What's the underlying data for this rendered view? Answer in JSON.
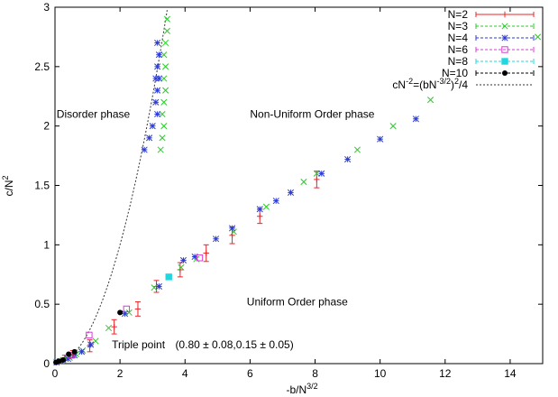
{
  "chart_data": {
    "type": "scatter",
    "xlabel": "-b/N^{3/2}",
    "ylabel": "c/N^2",
    "xlim": [
      0,
      15
    ],
    "ylim": [
      0,
      3
    ],
    "xticks": [
      0,
      2,
      4,
      6,
      8,
      10,
      12,
      14
    ],
    "yticks": [
      0,
      0.5,
      1,
      1.5,
      2,
      2.5,
      3
    ],
    "annotations": [
      {
        "text": "Disorder phase",
        "x": 0.05,
        "y": 2.07
      },
      {
        "text": "Non-Uniform Order phase",
        "x": 6.0,
        "y": 2.07
      },
      {
        "text": "Uniform Order phase",
        "x": 5.9,
        "y": 0.49
      },
      {
        "text": "Triple point",
        "x": 1.75,
        "y": 0.13
      },
      {
        "text": "(0.80 ± 0.08,0.15 ± 0.05)",
        "x": 3.7,
        "y": 0.13
      }
    ],
    "legend": {
      "position": "top-right"
    },
    "series": [
      {
        "name": "N=2",
        "color": "#e8262a",
        "marker": "plus",
        "points": [
          [
            0.07,
            0.02,
            0,
            0.01
          ],
          [
            0.3,
            0.05,
            0,
            0.02
          ],
          [
            0.55,
            0.08,
            0,
            0.03
          ],
          [
            1.07,
            0.15,
            0,
            0.05
          ],
          [
            1.82,
            0.31,
            0,
            0.06
          ],
          [
            2.55,
            0.46,
            0,
            0.06
          ],
          [
            3.12,
            0.65,
            0,
            0.05
          ],
          [
            3.85,
            0.79,
            0,
            0.06
          ],
          [
            4.65,
            0.93,
            0,
            0.07
          ],
          [
            5.45,
            1.08,
            0,
            0.07
          ],
          [
            6.3,
            1.24,
            0,
            0.06
          ],
          [
            8.05,
            1.55,
            0,
            0.07
          ]
        ]
      },
      {
        "name": "N=3",
        "color": "#2ac92a",
        "marker": "cross",
        "points": [
          [
            0.06,
            0.02
          ],
          [
            0.25,
            0.03
          ],
          [
            0.45,
            0.05
          ],
          [
            0.65,
            0.08
          ],
          [
            0.85,
            0.11
          ],
          [
            1.25,
            0.19
          ],
          [
            1.65,
            0.3
          ],
          [
            2.28,
            0.43
          ],
          [
            3.05,
            0.64
          ],
          [
            3.88,
            0.81
          ],
          [
            4.35,
            0.88
          ],
          [
            5.5,
            1.11
          ],
          [
            6.5,
            1.32
          ],
          [
            7.65,
            1.53
          ],
          [
            8.05,
            1.6
          ],
          [
            9.3,
            1.8
          ],
          [
            10.4,
            2.0
          ],
          [
            11.55,
            2.22
          ],
          [
            14.85,
            2.75
          ],
          [
            3.25,
            1.8
          ],
          [
            3.3,
            1.9
          ],
          [
            3.35,
            2.0
          ],
          [
            3.3,
            2.1
          ],
          [
            3.35,
            2.2
          ],
          [
            3.4,
            2.3
          ],
          [
            3.35,
            2.4
          ],
          [
            3.4,
            2.5
          ],
          [
            3.35,
            2.6
          ],
          [
            3.4,
            2.7
          ],
          [
            3.45,
            2.8
          ],
          [
            3.45,
            2.9
          ]
        ]
      },
      {
        "name": "N=4",
        "color": "#2b3bd6",
        "marker": "star",
        "points": [
          [
            0.05,
            0.01
          ],
          [
            0.18,
            0.02
          ],
          [
            0.4,
            0.04
          ],
          [
            0.6,
            0.07
          ],
          [
            0.82,
            0.1
          ],
          [
            1.1,
            0.16
          ],
          [
            2.15,
            0.42
          ],
          [
            3.2,
            0.65
          ],
          [
            3.95,
            0.87
          ],
          [
            4.3,
            0.9
          ],
          [
            4.95,
            1.05
          ],
          [
            5.45,
            1.14
          ],
          [
            6.3,
            1.3
          ],
          [
            6.8,
            1.37
          ],
          [
            7.25,
            1.44
          ],
          [
            8.2,
            1.6
          ],
          [
            9.0,
            1.72
          ],
          [
            10.0,
            1.89
          ],
          [
            11.1,
            2.06
          ],
          [
            2.75,
            1.8
          ],
          [
            2.9,
            1.9
          ],
          [
            3.0,
            2.0
          ],
          [
            3.15,
            2.1
          ],
          [
            3.1,
            2.2
          ],
          [
            3.15,
            2.3
          ],
          [
            3.2,
            2.4
          ],
          [
            3.15,
            2.5
          ],
          [
            3.2,
            2.6
          ],
          [
            3.15,
            2.7
          ],
          [
            3.1,
            2.4
          ]
        ]
      },
      {
        "name": "N=6",
        "color": "#d63bd6",
        "marker": "box",
        "points": [
          [
            0.5,
            0.07
          ],
          [
            1.05,
            0.24
          ],
          [
            2.2,
            0.46
          ],
          [
            4.45,
            0.89
          ]
        ]
      },
      {
        "name": "N=8",
        "color": "#22d6e0",
        "marker": "filledbox",
        "points": [
          [
            3.5,
            0.73
          ]
        ]
      },
      {
        "name": "N=10",
        "color": "#000000",
        "marker": "dot",
        "points": [
          [
            0.03,
            0.01
          ],
          [
            0.12,
            0.02
          ],
          [
            0.25,
            0.03
          ],
          [
            0.42,
            0.08
          ],
          [
            0.6,
            0.1
          ],
          [
            2.0,
            0.43
          ]
        ]
      },
      {
        "name": "cN^{-2}=(bN^{-3/2})^2/4",
        "color": "#333333",
        "marker": "dashedline"
      }
    ]
  }
}
